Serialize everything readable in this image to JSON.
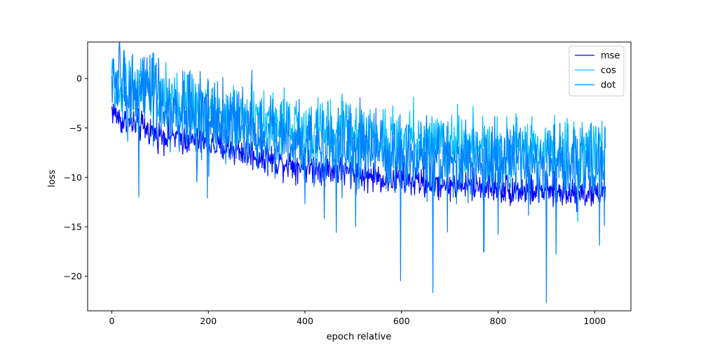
{
  "chart_data": {
    "type": "line",
    "xlabel": "epoch relative",
    "ylabel": "loss",
    "xlim": [
      -50,
      1075
    ],
    "ylim": [
      -23.5,
      3.7
    ],
    "xticks": [
      0,
      200,
      400,
      600,
      800,
      1000
    ],
    "yticks": [
      0,
      -5,
      -10,
      -15,
      -20
    ],
    "grid": false,
    "legend_position": "top-right",
    "series": [
      {
        "name": "mse",
        "color": "#0000ff",
        "profile": [
          [
            0,
            -3.1
          ],
          [
            20,
            -4.3
          ],
          [
            60,
            -4.9
          ],
          [
            100,
            -5.6
          ],
          [
            150,
            -6.1
          ],
          [
            200,
            -6.6
          ],
          [
            250,
            -7.1
          ],
          [
            300,
            -7.8
          ],
          [
            350,
            -8.4
          ],
          [
            400,
            -8.9
          ],
          [
            450,
            -9.2
          ],
          [
            500,
            -9.6
          ],
          [
            550,
            -10.0
          ],
          [
            600,
            -10.3
          ],
          [
            650,
            -10.5
          ],
          [
            700,
            -10.7
          ],
          [
            750,
            -10.9
          ],
          [
            800,
            -11.1
          ],
          [
            850,
            -11.3
          ],
          [
            900,
            -11.4
          ],
          [
            950,
            -11.5
          ],
          [
            1000,
            -11.6
          ],
          [
            1022,
            -11.4
          ]
        ],
        "noise": 0.8,
        "spikes": []
      },
      {
        "name": "cos",
        "color": "#00bfff",
        "profile": [
          [
            0,
            0.0
          ],
          [
            20,
            -0.4
          ],
          [
            60,
            -1.0
          ],
          [
            100,
            -1.8
          ],
          [
            150,
            -2.6
          ],
          [
            200,
            -3.2
          ],
          [
            250,
            -3.8
          ],
          [
            300,
            -4.3
          ],
          [
            350,
            -4.7
          ],
          [
            400,
            -5.1
          ],
          [
            450,
            -5.4
          ],
          [
            500,
            -5.7
          ],
          [
            550,
            -6.0
          ],
          [
            600,
            -6.2
          ],
          [
            650,
            -6.4
          ],
          [
            700,
            -6.6
          ],
          [
            750,
            -6.8
          ],
          [
            800,
            -7.0
          ],
          [
            850,
            -7.2
          ],
          [
            900,
            -7.3
          ],
          [
            950,
            -7.4
          ],
          [
            1000,
            -7.5
          ],
          [
            1022,
            -7.4
          ]
        ],
        "noise": 1.6,
        "spikes": []
      },
      {
        "name": "dot",
        "color": "#0080ff",
        "profile": [
          [
            0,
            0.0
          ],
          [
            20,
            -0.6
          ],
          [
            60,
            -1.5
          ],
          [
            100,
            -2.5
          ],
          [
            150,
            -3.3
          ],
          [
            200,
            -4.0
          ],
          [
            250,
            -4.6
          ],
          [
            300,
            -5.2
          ],
          [
            350,
            -5.7
          ],
          [
            400,
            -6.2
          ],
          [
            450,
            -6.6
          ],
          [
            500,
            -7.0
          ],
          [
            550,
            -7.3
          ],
          [
            600,
            -7.6
          ],
          [
            650,
            -7.9
          ],
          [
            700,
            -8.1
          ],
          [
            750,
            -8.3
          ],
          [
            800,
            -8.5
          ],
          [
            850,
            -8.7
          ],
          [
            900,
            -8.8
          ],
          [
            950,
            -8.9
          ],
          [
            1000,
            -9.0
          ],
          [
            1022,
            -8.9
          ]
        ],
        "noise": 2.0,
        "spikes": [
          [
            56,
            -12.0
          ],
          [
            85,
            2.6
          ],
          [
            198,
            -12.1
          ],
          [
            290,
            0.9
          ],
          [
            400,
            -12.7
          ],
          [
            440,
            -14.2
          ],
          [
            465,
            -15.6
          ],
          [
            505,
            -15.0
          ],
          [
            598,
            -20.5
          ],
          [
            665,
            -21.7
          ],
          [
            770,
            -17.6
          ],
          [
            800,
            -15.8
          ],
          [
            900,
            -22.7
          ],
          [
            920,
            -17.8
          ],
          [
            1010,
            -16.9
          ],
          [
            1020,
            -14.9
          ]
        ]
      }
    ]
  }
}
